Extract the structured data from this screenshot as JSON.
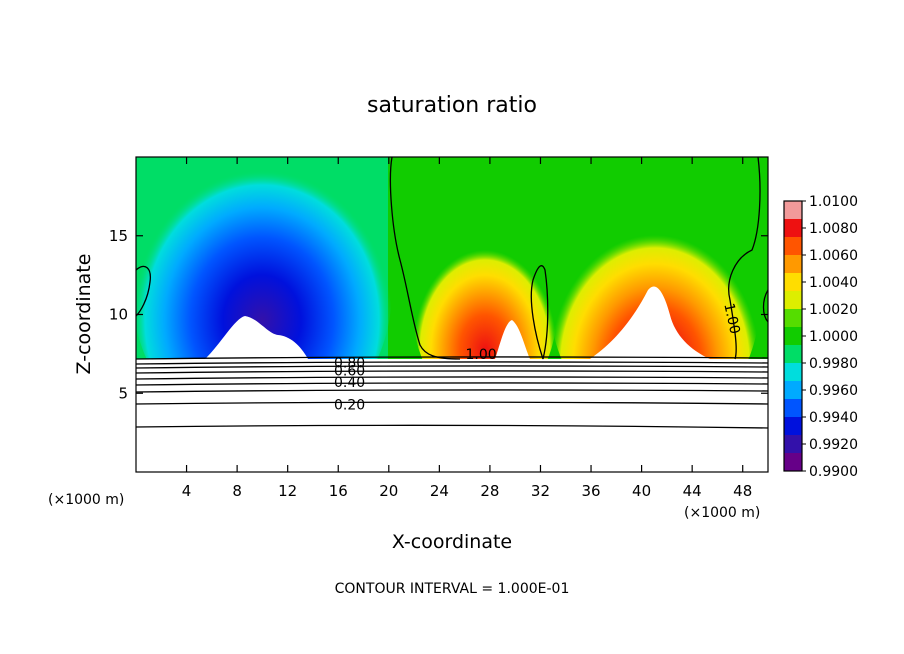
{
  "chart_data": {
    "type": "heatmap",
    "title": "saturation ratio",
    "xlabel": "X-coordinate",
    "ylabel": "Z-coordinate",
    "x_unit": "(×1000 m)",
    "x_unit_right": "(×1000 m)",
    "xlim": [
      0,
      50
    ],
    "ylim": [
      0,
      20
    ],
    "x_ticks": [
      4,
      8,
      12,
      16,
      20,
      24,
      28,
      32,
      36,
      40,
      44,
      48
    ],
    "y_ticks": [
      5,
      10,
      15
    ],
    "footer": "CONTOUR INTERVAL = 1.000E-01",
    "colorbar": {
      "min": 0.99,
      "max": 1.01,
      "labels": [
        "1.0100",
        "1.0080",
        "1.0060",
        "1.0040",
        "1.0020",
        "1.0000",
        "0.9980",
        "0.9960",
        "0.9940",
        "0.9920",
        "0.9900"
      ],
      "colors": [
        "#f29a9a",
        "#ee1111",
        "#ff5500",
        "#ff9900",
        "#ffdd00",
        "#ddee00",
        "#55dd00",
        "#11cc00",
        "#00dd66",
        "#00dddd",
        "#00aaff",
        "#0055ff",
        "#0011dd",
        "#3311aa",
        "#660088"
      ]
    },
    "contour_labels": [
      {
        "text": "0.80",
        "x": 16.9,
        "z": 6.95
      },
      {
        "text": "0.60",
        "x": 16.9,
        "z": 6.45
      },
      {
        "text": "0.40",
        "x": 16.9,
        "z": 5.7
      },
      {
        "text": "0.20",
        "x": 16.9,
        "z": 4.3
      },
      {
        "text": "1.00",
        "x": 27.3,
        "z": 7.5
      },
      {
        "text": "1.00",
        "x": 46.8,
        "z": 10.0
      }
    ]
  }
}
